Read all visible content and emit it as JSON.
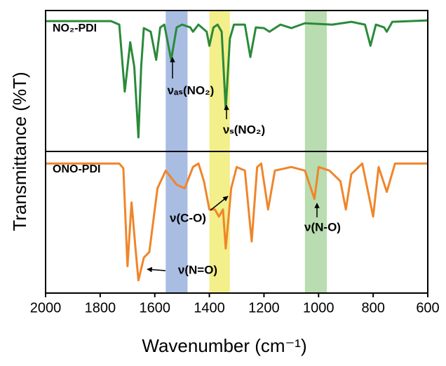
{
  "chart_data": {
    "type": "line",
    "x_label": "Wavenumber (cm⁻¹)",
    "y_label": "Transmittance (%T)",
    "xlim": [
      2000,
      600
    ],
    "xticks": [
      2000,
      1800,
      1600,
      1400,
      1200,
      1000,
      800,
      600
    ],
    "bands": [
      {
        "range": [
          1560,
          1480
        ],
        "color": "#a9bde3"
      },
      {
        "range": [
          1400,
          1325
        ],
        "color": "#f3ef8a"
      },
      {
        "range": [
          1050,
          970
        ],
        "color": "#b9dcb0"
      }
    ],
    "panels": [
      {
        "ylim": [
          0,
          100
        ],
        "annotations": [
          "νₐₛ(NO₂)",
          "νₛ(NO₂)"
        ],
        "series": [
          {
            "name": "NO₂-PDI",
            "color": "#2a8a3a",
            "x": [
              2000,
              1760,
              1730,
              1710,
              1700,
              1690,
              1675,
              1660,
              1650,
              1640,
              1615,
              1595,
              1580,
              1565,
              1540,
              1520,
              1500,
              1470,
              1460,
              1440,
              1410,
              1400,
              1385,
              1370,
              1355,
              1340,
              1325,
              1310,
              1270,
              1250,
              1230,
              1200,
              1180,
              1140,
              1100,
              1050,
              950,
              880,
              830,
              810,
              790,
              760,
              750,
              730,
              600
            ],
            "values": [
              92.5,
              92.5,
              90,
              42.5,
              60,
              77.5,
              60,
              10,
              60,
              87.5,
              85,
              65,
              88,
              90,
              65,
              88,
              90,
              88,
              85,
              90,
              85,
              75,
              88,
              90,
              85,
              30,
              80,
              90,
              90,
              67,
              88,
              87.5,
              85,
              90,
              87.5,
              91,
              90,
              92,
              90,
              75,
              90,
              88,
              85,
              92,
              93
            ]
          }
        ]
      },
      {
        "ylim": [
          0,
          100
        ],
        "annotations": [
          "ν(C-O)",
          "ν(N=O)",
          "ν(N-O)"
        ],
        "series": [
          {
            "name": "ONO-PDI",
            "color": "#f0852a",
            "x": [
              2000,
              1730,
              1715,
              1700,
              1685,
              1670,
              1660,
              1640,
              1620,
              1590,
              1560,
              1520,
              1490,
              1460,
              1440,
              1420,
              1400,
              1380,
              1365,
              1350,
              1340,
              1320,
              1300,
              1270,
              1245,
              1225,
              1210,
              1185,
              1160,
              1100,
              1050,
              1015,
              1000,
              960,
              920,
              900,
              880,
              840,
              800,
              780,
              750,
              720,
              600
            ],
            "values": [
              91.5,
              91.5,
              88,
              19,
              64,
              30,
              9,
              25,
              29,
              74,
              86.5,
              76.5,
              74,
              89,
              91.5,
              79,
              59,
              59,
              54,
              59,
              31.5,
              74,
              89,
              86.5,
              36.5,
              89,
              91.5,
              59,
              86.5,
              89,
              86.5,
              66.5,
              89,
              86.5,
              79,
              59,
              84,
              91.5,
              54,
              89,
              71.5,
              91.5,
              91.5
            ]
          }
        ]
      }
    ]
  }
}
